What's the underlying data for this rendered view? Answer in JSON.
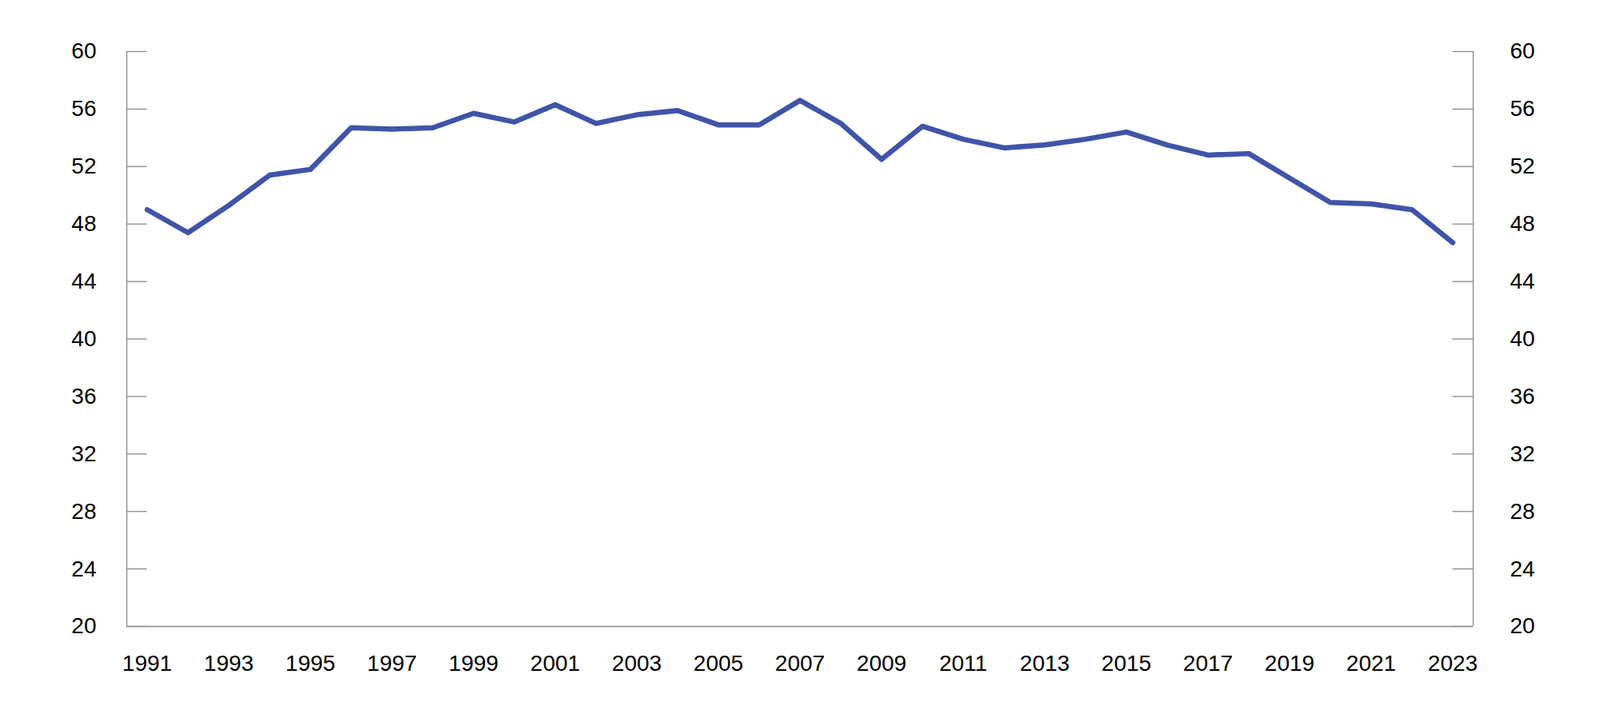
{
  "chart_data": {
    "type": "line",
    "x": [
      1991,
      1992,
      1993,
      1994,
      1995,
      1996,
      1997,
      1998,
      1999,
      2000,
      2001,
      2002,
      2003,
      2004,
      2005,
      2006,
      2007,
      2008,
      2009,
      2010,
      2011,
      2012,
      2013,
      2014,
      2015,
      2016,
      2017,
      2018,
      2019,
      2020,
      2021,
      2022,
      2023
    ],
    "series": [
      {
        "color": "#4054a8",
        "values": [
          49.0,
          47.4,
          49.3,
          51.4,
          51.8,
          54.7,
          54.6,
          54.7,
          55.7,
          55.1,
          56.3,
          55.0,
          55.6,
          55.9,
          54.9,
          54.9,
          56.6,
          55.0,
          52.5,
          54.8,
          53.9,
          53.3,
          53.5,
          53.9,
          54.4,
          53.5,
          52.8,
          52.9,
          51.2,
          49.5,
          49.4,
          49.0,
          46.7
        ]
      }
    ],
    "xlim": [
      1990.5,
      2023.5
    ],
    "xticks": [
      1991,
      1993,
      1995,
      1997,
      1999,
      2001,
      2003,
      2005,
      2007,
      2009,
      2011,
      2013,
      2015,
      2017,
      2019,
      2021,
      2023
    ],
    "ylim": [
      20,
      60
    ],
    "yticks": [
      20,
      24,
      28,
      32,
      36,
      40,
      44,
      48,
      52,
      56,
      60
    ],
    "y2lim": [
      20,
      60
    ],
    "y2ticks": [
      20,
      24,
      28,
      32,
      36,
      40,
      44,
      48,
      52,
      56,
      60
    ],
    "grid": false
  }
}
